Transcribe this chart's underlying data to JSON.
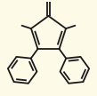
{
  "background_color": "#fdfae8",
  "line_color": "#1a1a1a",
  "line_width": 1.3,
  "dbo": 0.038,
  "figsize": [
    1.09,
    1.08
  ],
  "dpi": 100
}
